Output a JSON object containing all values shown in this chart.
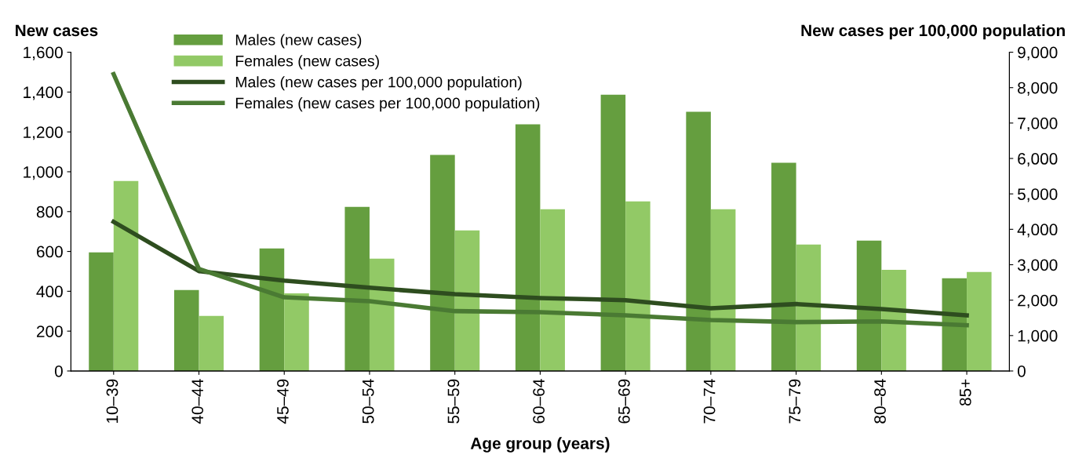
{
  "chart_data": {
    "type": "bar",
    "xlabel": "Age group (years)",
    "ylabel": "New cases",
    "y2label": "New cases per 100,000 population",
    "categories": [
      "10–39",
      "40–44",
      "45–49",
      "50–54",
      "55–59",
      "60–64",
      "65–69",
      "70–74",
      "75–79",
      "80–84",
      "85+"
    ],
    "series": [
      {
        "name": "Males (new cases)",
        "color": "#659e3f",
        "values": [
          595,
          406,
          615,
          824,
          1084,
          1238,
          1387,
          1301,
          1045,
          654,
          465
        ]
      },
      {
        "name": "Females (new cases)",
        "color": "#92c966",
        "values": [
          954,
          276,
          390,
          564,
          706,
          812,
          851,
          812,
          635,
          508,
          497
        ]
      },
      {
        "name": "Males (new cases per 100,000 population)",
        "type": "line",
        "axis": "y2",
        "color": "#2e4d1f",
        "values": [
          4210,
          2820,
          2550,
          2350,
          2170,
          2060,
          2000,
          1770,
          1890,
          1750,
          1570
        ]
      },
      {
        "name": "Females (new cases per 100,000 population)",
        "type": "line",
        "axis": "y2",
        "color": "#4a7a33",
        "values": [
          8380,
          2880,
          2080,
          1970,
          1690,
          1660,
          1570,
          1440,
          1380,
          1400,
          1290
        ]
      }
    ],
    "ylim": [
      0,
      1600
    ],
    "yticks": [
      0,
      {
        "value": 200,
        "label": "200"
      },
      {
        "value": 400,
        "label": "400"
      },
      {
        "value": 600,
        "label": "600"
      },
      {
        "value": 800,
        "label": "800"
      },
      {
        "value": 1000,
        "label": "1,000"
      },
      {
        "value": 1200,
        "label": "1,200"
      },
      {
        "value": 1400,
        "label": "1,400"
      },
      {
        "value": 1600,
        "label": "1,600"
      }
    ],
    "y2lim": [
      0,
      9000
    ],
    "y2ticks": [
      0,
      {
        "value": 1000,
        "label": "1,000"
      },
      {
        "value": 2000,
        "label": "2,000"
      },
      {
        "value": 3000,
        "label": "3,000"
      },
      {
        "value": 4000,
        "label": "4,000"
      },
      {
        "value": 5000,
        "label": "5,000"
      },
      {
        "value": 6000,
        "label": "6,000"
      },
      {
        "value": 7000,
        "label": "7,000"
      },
      {
        "value": 8000,
        "label": "8,000"
      },
      {
        "value": 9000,
        "label": "9,000"
      }
    ],
    "grid": false,
    "legend": "top left",
    "marker": "none",
    "line_style": "solid"
  }
}
